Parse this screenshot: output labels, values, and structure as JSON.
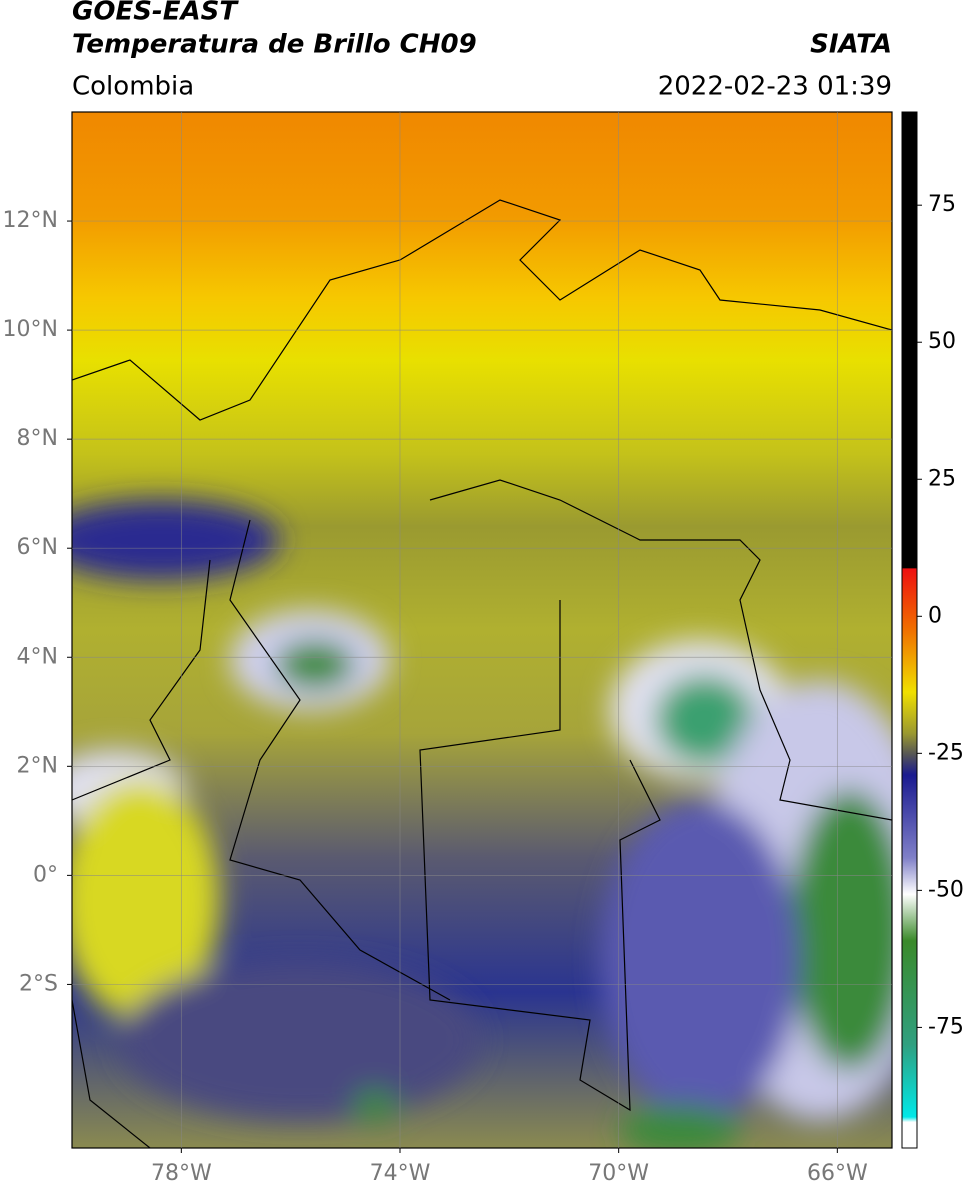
{
  "header": {
    "title": "GOES-EAST",
    "subtitle": "Temperatura de Brillo CH09",
    "source": "SIATA",
    "region": "Colombia",
    "datetime": "2022-02-23 01:39"
  },
  "map": {
    "xlim": [
      -80,
      -65
    ],
    "ylim": [
      -5,
      14
    ],
    "xticks": [
      {
        "value": -78,
        "label": "78°W"
      },
      {
        "value": -74,
        "label": "74°W"
      },
      {
        "value": -70,
        "label": "70°W"
      },
      {
        "value": -66,
        "label": "66°W"
      }
    ],
    "yticks": [
      {
        "value": 12,
        "label": "12°N"
      },
      {
        "value": 10,
        "label": "10°N"
      },
      {
        "value": 8,
        "label": "8°N"
      },
      {
        "value": 6,
        "label": "6°N"
      },
      {
        "value": 4,
        "label": "4°N"
      },
      {
        "value": 2,
        "label": "2°N"
      },
      {
        "value": 0,
        "label": "0°"
      },
      {
        "value": -2,
        "label": "2°S"
      }
    ],
    "grid": true
  },
  "colorbar": {
    "ylim": [
      -97,
      92
    ],
    "yticks": [
      75,
      50,
      25,
      0,
      -25,
      -50,
      -75
    ]
  }
}
